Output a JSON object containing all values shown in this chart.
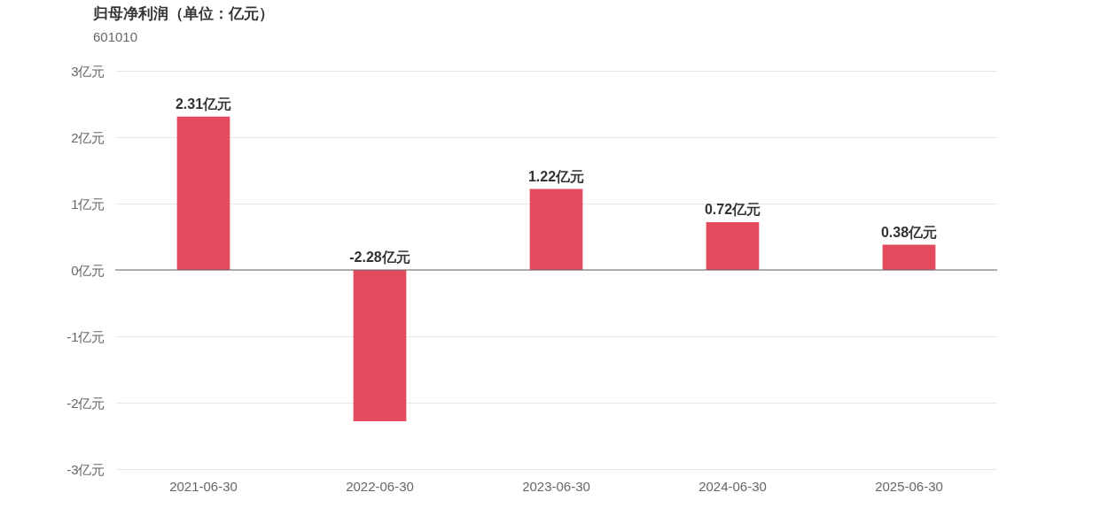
{
  "chart_data": {
    "type": "bar",
    "title": "归母净利润（单位：亿元）",
    "subtitle": "601010",
    "categories": [
      "2021-06-30",
      "2022-06-30",
      "2023-06-30",
      "2024-06-30",
      "2025-06-30"
    ],
    "values": [
      2.31,
      -2.28,
      1.22,
      0.72,
      0.38
    ],
    "value_labels": [
      "2.31亿元",
      "-2.28亿元",
      "1.22亿元",
      "0.72亿元",
      "0.38亿元"
    ],
    "color": "#e54b5f",
    "ylim": [
      -3,
      3
    ],
    "yticks": [
      {
        "value": -3,
        "label": "-3亿元"
      },
      {
        "value": -2,
        "label": "-2亿元"
      },
      {
        "value": -1,
        "label": "-1亿元"
      },
      {
        "value": 0,
        "label": "0亿元"
      },
      {
        "value": 1,
        "label": "1亿元"
      },
      {
        "value": 2,
        "label": "2亿元"
      },
      {
        "value": 3,
        "label": "3亿元"
      }
    ],
    "ref_lines": [
      {
        "axis": "y",
        "value": 0,
        "color": "#666666"
      }
    ],
    "grid": "y"
  }
}
